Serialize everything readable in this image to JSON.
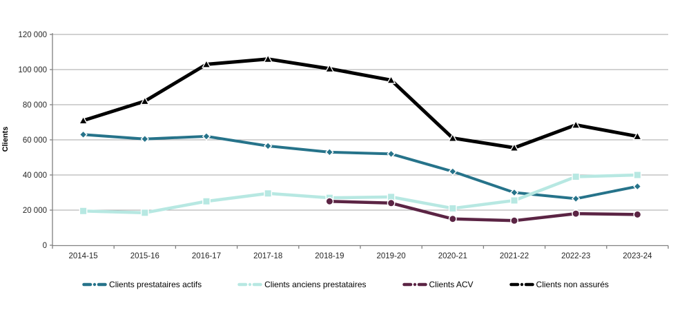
{
  "chart_data": {
    "type": "line",
    "title": "",
    "ylabel": "Clients",
    "xlabel": "",
    "ylim": [
      0,
      120000
    ],
    "grid": "horizontal",
    "legend_position": "bottom",
    "categories": [
      "2014-15",
      "2015-16",
      "2016-17",
      "2017-18",
      "2018-19",
      "2019-20",
      "2020-21",
      "2021-22",
      "2022-23",
      "2023-24"
    ],
    "y_ticks": {
      "values": [
        0,
        20000,
        40000,
        60000,
        80000,
        100000,
        120000
      ],
      "labels": [
        "0",
        "20 000",
        "40 000",
        "60 000",
        "80 000",
        "100 000",
        "120 000"
      ]
    },
    "series": [
      {
        "name": "Clients prestataires actifs",
        "color": "#26738a",
        "marker": "diamond",
        "line_width": 4,
        "values": [
          63000,
          60500,
          62000,
          56500,
          53000,
          52000,
          42000,
          30000,
          26500,
          33500
        ]
      },
      {
        "name": "Clients anciens prestataires",
        "color": "#b7e8e2",
        "marker": "square",
        "line_width": 4.5,
        "values": [
          19500,
          18500,
          25000,
          29500,
          27000,
          27500,
          21000,
          25500,
          39000,
          40000
        ]
      },
      {
        "name": "Clients ACV",
        "color": "#5b2444",
        "marker": "circle",
        "line_width": 4.5,
        "values": [
          null,
          null,
          null,
          null,
          25000,
          24000,
          15000,
          14000,
          18000,
          17500
        ]
      },
      {
        "name": "Clients non assurés",
        "color": "#000000",
        "marker": "triangle",
        "line_width": 5,
        "values": [
          71000,
          82000,
          103000,
          106000,
          100500,
          94000,
          61000,
          55500,
          68500,
          62000
        ]
      }
    ],
    "axis_color": "#808080",
    "gridline_color": "#a6a6a6",
    "tick_label_color": "#262626"
  }
}
